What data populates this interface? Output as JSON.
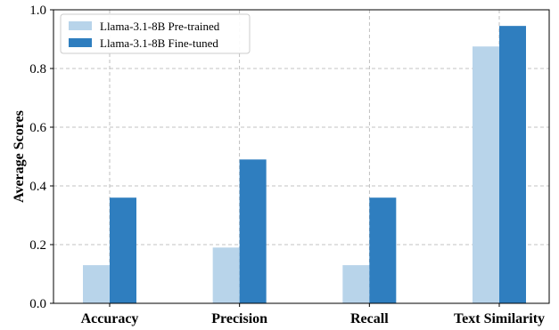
{
  "chart_data": {
    "type": "bar",
    "categories": [
      "Accuracy",
      "Precision",
      "Recall",
      "Text Similarity"
    ],
    "series": [
      {
        "name": "Llama-3.1-8B Pre-trained",
        "values": [
          0.13,
          0.19,
          0.13,
          0.875
        ],
        "color": "#b8d4ea"
      },
      {
        "name": "Llama-3.1-8B Fine-tuned",
        "values": [
          0.36,
          0.49,
          0.36,
          0.945
        ],
        "color": "#2f7ebf"
      }
    ],
    "ylabel": "Average Scores",
    "ylim": [
      0.0,
      1.0
    ],
    "yticks": [
      "0.0",
      "0.2",
      "0.4",
      "0.6",
      "0.8",
      "1.0"
    ],
    "grid": true,
    "legend_position": "top-left"
  }
}
